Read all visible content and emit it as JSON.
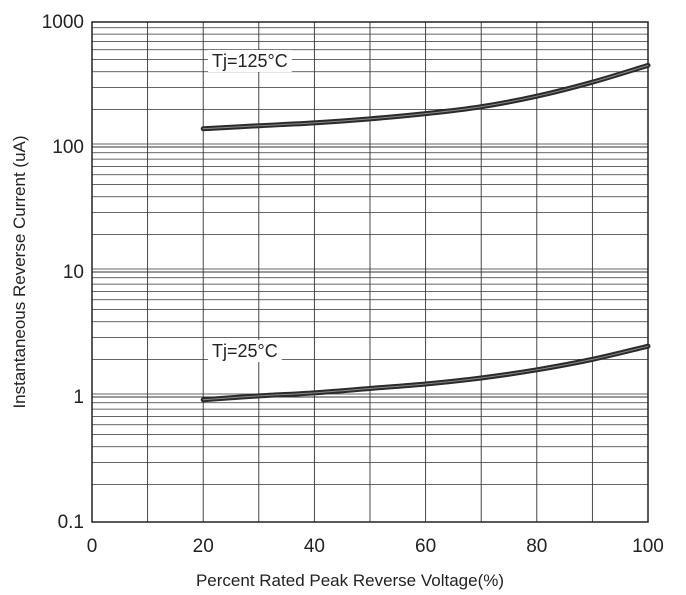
{
  "chart_data": {
    "type": "line",
    "title": "",
    "xlabel": "Percent Rated Peak Reverse Voltage(%)",
    "ylabel": "Instantaneous Reverse Current (uA)",
    "xlim": [
      0,
      100
    ],
    "ylim": [
      0.1,
      1000
    ],
    "yscale": "log",
    "grid": true,
    "x_ticks": [
      "0",
      "20",
      "40",
      "60",
      "80",
      "100"
    ],
    "y_ticks": [
      "0.1",
      "1",
      "10",
      "100",
      "1000"
    ],
    "series": [
      {
        "name": "Tj=125°C",
        "x": [
          20,
          30,
          40,
          50,
          60,
          70,
          80,
          90,
          100
        ],
        "y": [
          140,
          148,
          156,
          168,
          185,
          210,
          255,
          330,
          450
        ]
      },
      {
        "name": "Tj=25°C",
        "x": [
          20,
          30,
          40,
          50,
          60,
          70,
          80,
          90,
          100
        ],
        "y": [
          0.95,
          1.02,
          1.08,
          1.17,
          1.27,
          1.42,
          1.65,
          2.0,
          2.55
        ]
      }
    ],
    "colors": {
      "line": "#2b2b2b",
      "grid": "#333333",
      "frame": "#222222"
    }
  }
}
